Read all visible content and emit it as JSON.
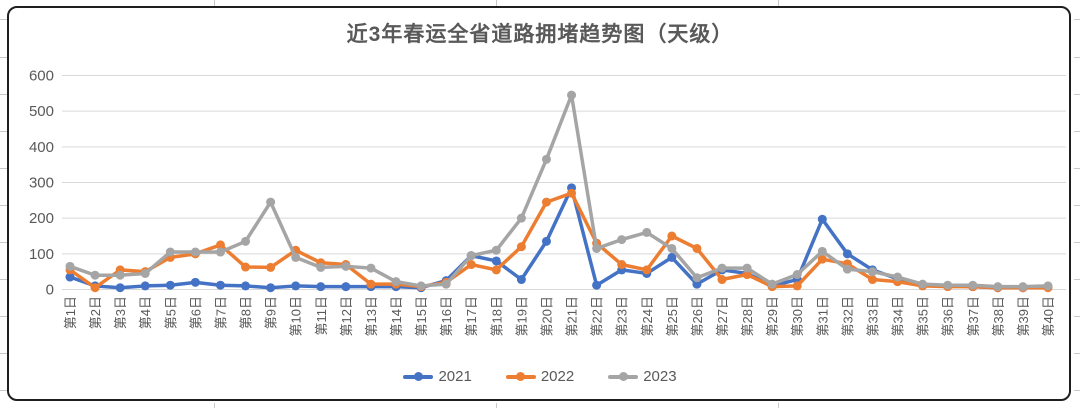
{
  "chart_data": {
    "type": "line",
    "title": "近3年春运全省道路拥堵趋势图（天级）",
    "x_labels": [
      "第1日",
      "第2日",
      "第3日",
      "第4日",
      "第5日",
      "第6日",
      "第7日",
      "第8日",
      "第9日",
      "第10日",
      "第11日",
      "第12日",
      "第13日",
      "第14日",
      "第15日",
      "第16日",
      "第17日",
      "第18日",
      "第19日",
      "第20日",
      "第21日",
      "第22日",
      "第23日",
      "第24日",
      "第25日",
      "第26日",
      "第27日",
      "第28日",
      "第29日",
      "第30日",
      "第31日",
      "第32日",
      "第33日",
      "第34日",
      "第35日",
      "第36日",
      "第37日",
      "第38日",
      "第39日",
      "第40日"
    ],
    "y_ticks": [
      0,
      100,
      200,
      300,
      400,
      500,
      600
    ],
    "ylim": [
      0,
      600
    ],
    "grid": true,
    "legend_position": "bottom",
    "series": [
      {
        "name": "2021",
        "color": "#4472C4",
        "values": [
          35,
          10,
          5,
          10,
          12,
          20,
          12,
          10,
          5,
          10,
          8,
          8,
          8,
          8,
          5,
          25,
          95,
          80,
          28,
          135,
          285,
          12,
          55,
          45,
          90,
          15,
          55,
          45,
          10,
          28,
          197,
          100,
          55,
          30,
          12,
          10,
          8,
          5,
          5,
          8
        ]
      },
      {
        "name": "2022",
        "color": "#ED7D31",
        "values": [
          55,
          5,
          55,
          50,
          90,
          100,
          125,
          63,
          62,
          110,
          75,
          70,
          15,
          15,
          8,
          20,
          70,
          55,
          120,
          245,
          270,
          130,
          70,
          55,
          150,
          115,
          28,
          42,
          8,
          10,
          85,
          72,
          28,
          22,
          10,
          8,
          8,
          5,
          5,
          5
        ]
      },
      {
        "name": "2023",
        "color": "#A5A5A5",
        "values": [
          65,
          40,
          40,
          45,
          105,
          105,
          105,
          135,
          245,
          90,
          62,
          65,
          60,
          22,
          10,
          15,
          95,
          110,
          200,
          365,
          545,
          115,
          140,
          160,
          115,
          33,
          60,
          60,
          15,
          42,
          107,
          57,
          50,
          35,
          15,
          12,
          12,
          8,
          8,
          10
        ]
      }
    ]
  },
  "style_colors": {
    "title_text": "#595959",
    "axis_text": "#595959",
    "gridline": "#D9D9D9",
    "frame_border": "#1f1f1f"
  }
}
